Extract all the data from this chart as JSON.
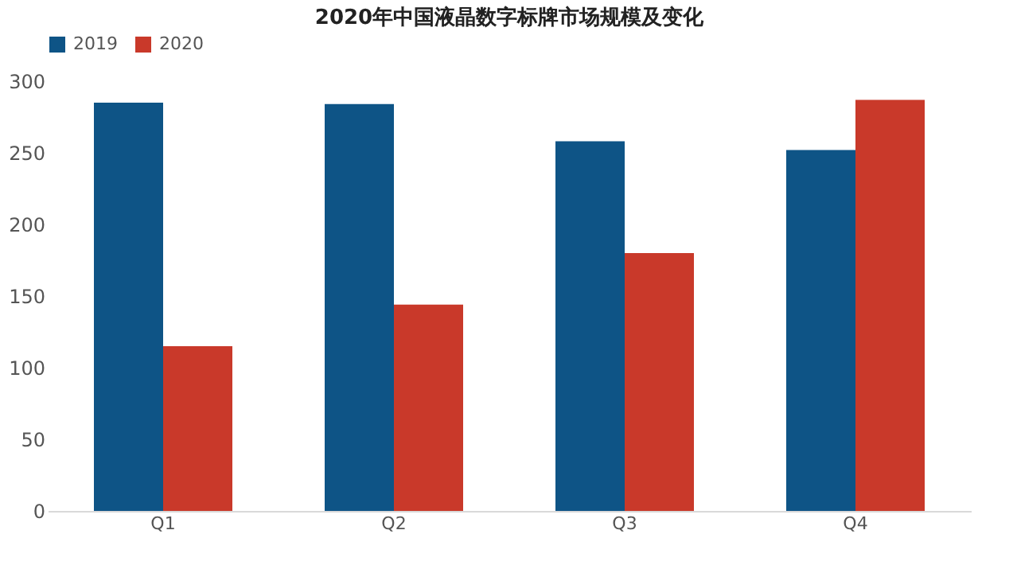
{
  "chart_data": {
    "type": "bar",
    "title": "2020年中国液晶数字标牌市场规模及变化",
    "categories": [
      "Q1",
      "Q2",
      "Q3",
      "Q4"
    ],
    "series": [
      {
        "name": "2019",
        "color": "#0e5486",
        "values": [
          285,
          284,
          258,
          252
        ]
      },
      {
        "name": "2020",
        "color": "#c9392a",
        "values": [
          115,
          144,
          180,
          287
        ]
      }
    ],
    "ylim": [
      0,
      300
    ],
    "yticks": [
      0,
      50,
      100,
      150,
      200,
      250,
      300
    ],
    "grid": false,
    "legend": "top"
  }
}
